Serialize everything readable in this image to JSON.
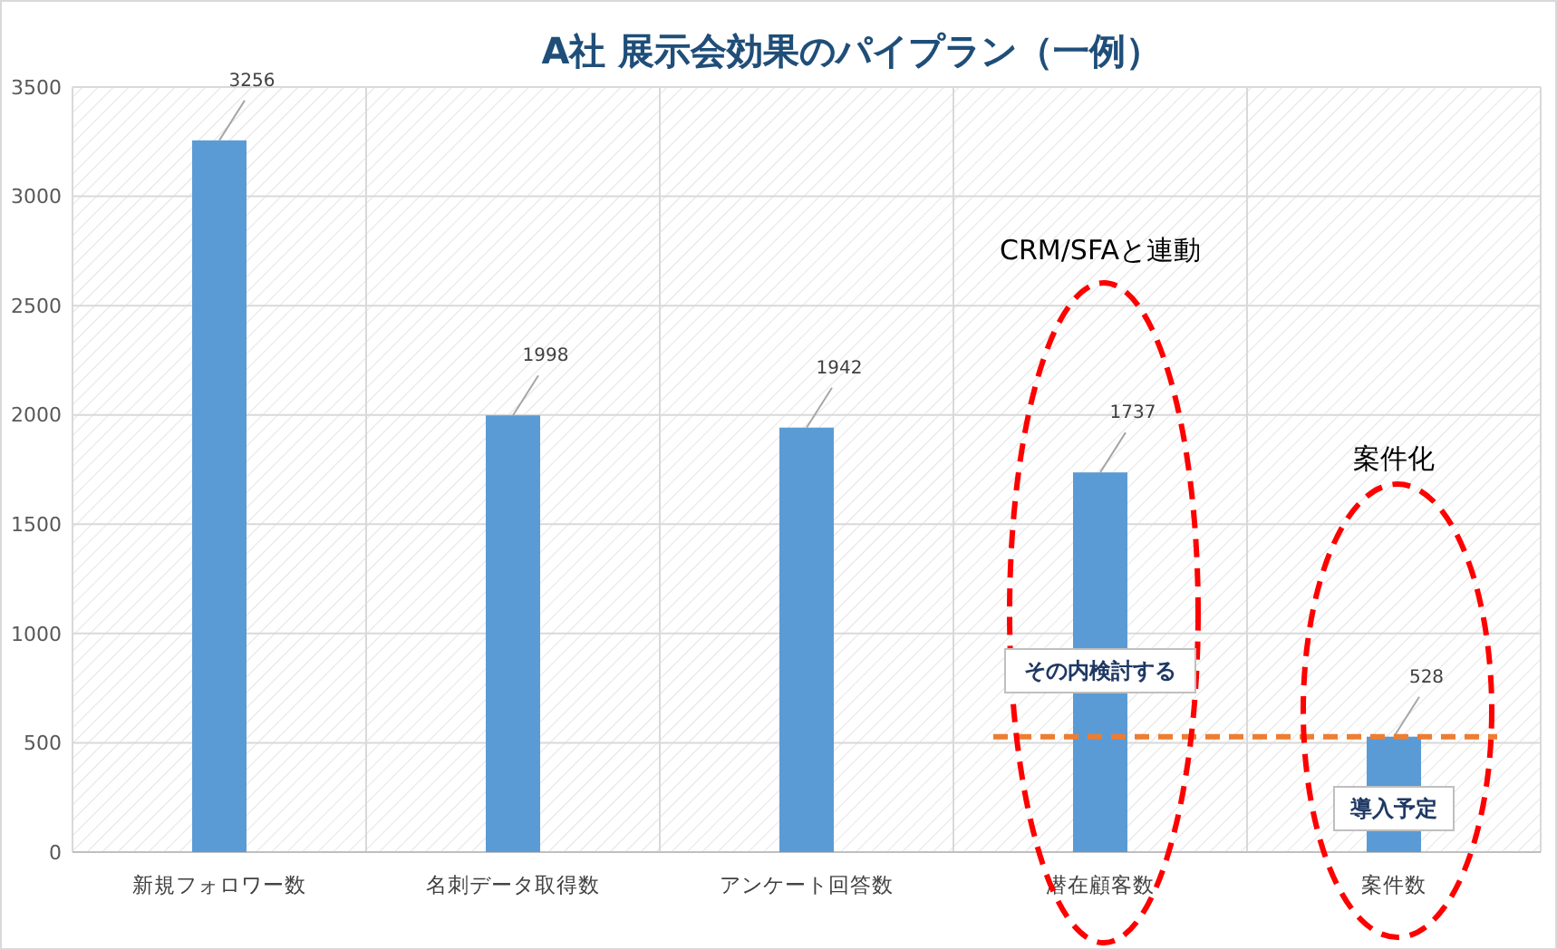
{
  "chart_data": {
    "type": "bar",
    "title": "A社  展示会効果のパイプラン（一例）",
    "categories": [
      "新規フォロワー数",
      "名刺データ取得数",
      "アンケート回答数",
      "潜在顧客数",
      "案件数"
    ],
    "values": [
      3256,
      1998,
      1942,
      1737,
      528
    ],
    "color": "#5b9bd5",
    "data_labels": true,
    "ylim": [
      0,
      3500
    ],
    "yticks": [
      0,
      500,
      1000,
      1500,
      2000,
      2500,
      3000,
      3500
    ],
    "grid": true,
    "ref_lines": [
      {
        "axis": "y",
        "value": 528,
        "color": "#ed7d31",
        "line_style": "dashed"
      }
    ],
    "annotations": [
      "CRM/SFAと連動",
      "案件化",
      "その内検討する",
      "導入予定"
    ]
  }
}
